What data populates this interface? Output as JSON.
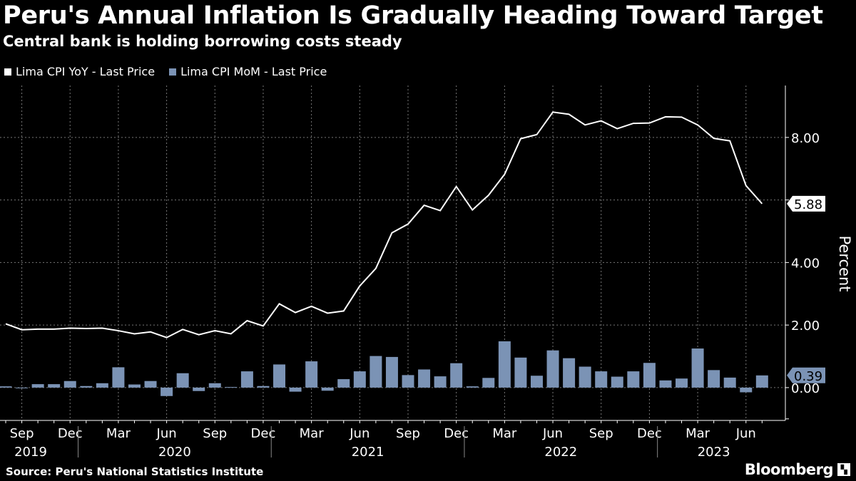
{
  "header": {
    "title": "Peru's Annual Inflation Is Gradually Heading Toward Target",
    "subtitle": "Central bank is holding borrowing costs steady"
  },
  "footer": {
    "source": "Source: Peru's National Statistics Institute",
    "logo": "Bloomberg"
  },
  "chart_data": {
    "type": "bar+line",
    "title": "Peru's Annual Inflation Is Gradually Heading Toward Target",
    "subtitle": "Central bank is holding borrowing costs steady",
    "ylabel": "Percent",
    "ylim": [
      -1.05,
      9.66
    ],
    "yticks": [
      0,
      2,
      4,
      8
    ],
    "ytick_labels": [
      "0.00",
      "2.00",
      "4.00",
      "8.00"
    ],
    "grid": true,
    "legend_position": "top-left",
    "axis_side": "right",
    "x": [
      "2019-08",
      "2019-09",
      "2019-10",
      "2019-11",
      "2019-12",
      "2020-01",
      "2020-02",
      "2020-03",
      "2020-04",
      "2020-05",
      "2020-06",
      "2020-07",
      "2020-08",
      "2020-09",
      "2020-10",
      "2020-11",
      "2020-12",
      "2021-01",
      "2021-02",
      "2021-03",
      "2021-04",
      "2021-05",
      "2021-06",
      "2021-07",
      "2021-08",
      "2021-09",
      "2021-10",
      "2021-11",
      "2021-12",
      "2022-01",
      "2022-02",
      "2022-03",
      "2022-04",
      "2022-05",
      "2022-06",
      "2022-07",
      "2022-08",
      "2022-09",
      "2022-10",
      "2022-11",
      "2022-12",
      "2023-01",
      "2023-02",
      "2023-03",
      "2023-04",
      "2023-05",
      "2023-06",
      "2023-07"
    ],
    "month_ticks": [
      {
        "x": "2019-09",
        "label": "Sep"
      },
      {
        "x": "2019-12",
        "label": "Dec"
      },
      {
        "x": "2020-03",
        "label": "Mar"
      },
      {
        "x": "2020-06",
        "label": "Jun"
      },
      {
        "x": "2020-09",
        "label": "Sep"
      },
      {
        "x": "2020-12",
        "label": "Dec"
      },
      {
        "x": "2021-03",
        "label": "Mar"
      },
      {
        "x": "2021-06",
        "label": "Jun"
      },
      {
        "x": "2021-09",
        "label": "Sep"
      },
      {
        "x": "2021-12",
        "label": "Dec"
      },
      {
        "x": "2022-03",
        "label": "Mar"
      },
      {
        "x": "2022-06",
        "label": "Jun"
      },
      {
        "x": "2022-09",
        "label": "Sep"
      },
      {
        "x": "2022-12",
        "label": "Dec"
      },
      {
        "x": "2023-03",
        "label": "Mar"
      },
      {
        "x": "2023-06",
        "label": "Jun"
      }
    ],
    "year_labels": [
      "2019",
      "2020",
      "2021",
      "2022",
      "2023"
    ],
    "series": [
      {
        "name": "Lima CPI YoY - Last Price",
        "type": "line",
        "color": "#ffffff",
        "last_label": "5.88",
        "values": [
          2.04,
          1.85,
          1.87,
          1.87,
          1.9,
          1.89,
          1.9,
          1.82,
          1.72,
          1.78,
          1.6,
          1.86,
          1.69,
          1.82,
          1.72,
          2.14,
          1.97,
          2.68,
          2.4,
          2.6,
          2.38,
          2.45,
          3.25,
          3.81,
          4.95,
          5.23,
          5.83,
          5.66,
          6.43,
          5.68,
          6.15,
          6.82,
          7.96,
          8.09,
          8.81,
          8.74,
          8.4,
          8.53,
          8.28,
          8.45,
          8.46,
          8.66,
          8.65,
          8.4,
          7.97,
          7.89,
          6.46,
          5.88
        ]
      },
      {
        "name": "Lima CPI MoM - Last Price",
        "type": "bar",
        "color": "#7b93b5",
        "last_label": "0.39",
        "values": [
          0.04,
          -0.02,
          0.11,
          0.11,
          0.21,
          0.05,
          0.14,
          0.65,
          0.1,
          0.21,
          -0.27,
          0.46,
          -0.11,
          0.14,
          0.02,
          0.52,
          0.05,
          0.74,
          -0.13,
          0.84,
          -0.1,
          0.27,
          0.52,
          1.01,
          0.98,
          0.4,
          0.58,
          0.36,
          0.78,
          0.04,
          0.31,
          1.48,
          0.96,
          0.38,
          1.19,
          0.94,
          0.67,
          0.52,
          0.35,
          0.52,
          0.79,
          0.23,
          0.29,
          1.25,
          0.56,
          0.32,
          -0.15,
          0.39
        ]
      }
    ]
  }
}
